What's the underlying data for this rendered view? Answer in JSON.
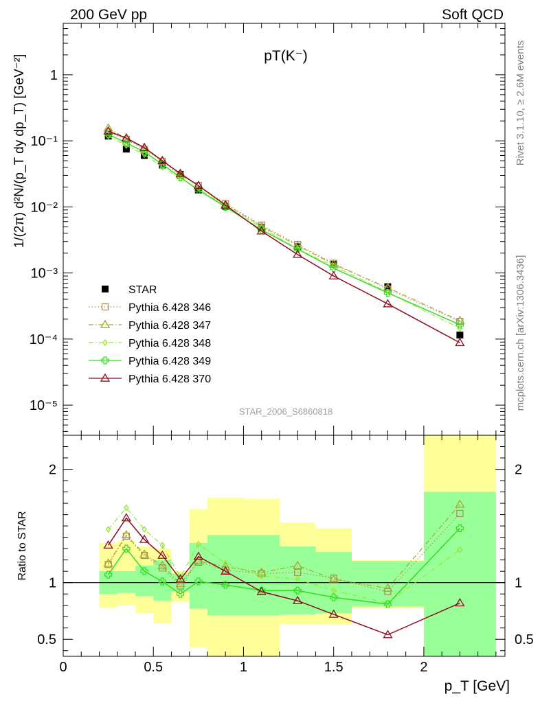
{
  "header": {
    "left": "200 GeV pp",
    "right": "Soft QCD"
  },
  "side_texts": {
    "rivet": "Rivet 3.1.10, ≥ 2.6M events",
    "mcplots": "mcplots.cern.ch [arXiv:1306.3436]"
  },
  "chart_data": [
    {
      "type": "scatter",
      "title": "pT(K⁻)",
      "watermark": "STAR_2006_S6860818",
      "ylabel": "1/(2π) d²N/(p_T dy dp_T) [GeV⁻²]",
      "yscale": "log",
      "xlim": [
        0,
        2.45
      ],
      "ylim": [
        3.5e-06,
        6
      ],
      "y_ticks": [
        {
          "value": 1,
          "label": "1"
        },
        {
          "value": 0.1,
          "label": "10⁻¹"
        },
        {
          "value": 0.01,
          "label": "10⁻²"
        },
        {
          "value": 0.001,
          "label": "10⁻³"
        },
        {
          "value": 0.0001,
          "label": "10⁻⁴"
        },
        {
          "value": 1e-05,
          "label": "10⁻⁵"
        }
      ],
      "legend_position": "lower-left",
      "x": [
        0.25,
        0.35,
        0.45,
        0.55,
        0.65,
        0.75,
        0.9,
        1.1,
        1.3,
        1.5,
        1.8,
        2.2
      ],
      "series": [
        {
          "name": "STAR",
          "color": "#000000",
          "marker": "square-filled",
          "line": "none",
          "values": [
            0.118,
            0.075,
            0.06,
            0.043,
            0.031,
            0.018,
            0.0102,
            0.0049,
            0.0025,
            0.00135,
            0.00062,
            0.000115
          ]
        },
        {
          "name": "Pythia 6.428 346",
          "color": "#b08d57",
          "marker": "square-open",
          "line": "dotted",
          "values": [
            0.135,
            0.105,
            0.074,
            0.049,
            0.03,
            0.021,
            0.0112,
            0.0053,
            0.0027,
            0.0014,
            0.00057,
            0.000185
          ]
        },
        {
          "name": "Pythia 6.428 347",
          "color": "#a6a632",
          "marker": "triangle-open",
          "line": "dashdot",
          "values": [
            0.155,
            0.108,
            0.077,
            0.05,
            0.031,
            0.021,
            0.0109,
            0.0051,
            0.0026,
            0.00135,
            0.0006,
            0.00019
          ]
        },
        {
          "name": "Pythia 6.428 348",
          "color": "#99e632",
          "marker": "diamond-open",
          "line": "dashdot",
          "values": [
            0.118,
            0.085,
            0.062,
            0.04,
            0.027,
            0.019,
            0.0102,
            0.0049,
            0.0023,
            0.00128,
            0.00051,
            0.000145
          ]
        },
        {
          "name": "Pythia 6.428 349",
          "color": "#33dd22",
          "marker": "cross-open",
          "line": "solid",
          "values": [
            0.126,
            0.093,
            0.068,
            0.044,
            0.028,
            0.018,
            0.01,
            0.0045,
            0.0023,
            0.00118,
            0.0005,
            0.000165
          ]
        },
        {
          "name": "Pythia 6.428 370",
          "color": "#8b0d1f",
          "marker": "triangle-open",
          "line": "solid",
          "values": [
            0.14,
            0.11,
            0.079,
            0.05,
            0.032,
            0.021,
            0.0106,
            0.0043,
            0.0019,
            0.0009,
            0.00034,
            8.8e-05
          ]
        }
      ]
    },
    {
      "type": "scatter",
      "ylabel": "Ratio to STAR",
      "xlabel": "p_T [GeV]",
      "xlim": [
        0,
        2.45
      ],
      "ylim": [
        0.35,
        2.3
      ],
      "x_ticks": [
        {
          "value": 0,
          "label": "0"
        },
        {
          "value": 0.5,
          "label": "0.5"
        },
        {
          "value": 1,
          "label": "1"
        },
        {
          "value": 1.5,
          "label": "1.5"
        },
        {
          "value": 2,
          "label": "2"
        }
      ],
      "y_ticks": [
        {
          "value": 0.5,
          "label": "0.5"
        },
        {
          "value": 1,
          "label": "1"
        },
        {
          "value": 2,
          "label": "2"
        }
      ],
      "reference_line": 1,
      "bands": [
        {
          "xlo": 0.2,
          "xhi": 0.3,
          "inner": [
            0.9,
            1.1
          ],
          "outer": [
            0.78,
            1.35
          ]
        },
        {
          "xlo": 0.3,
          "xhi": 0.4,
          "inner": [
            0.91,
            1.1
          ],
          "outer": [
            0.8,
            1.37
          ]
        },
        {
          "xlo": 0.4,
          "xhi": 0.5,
          "inner": [
            0.88,
            1.15
          ],
          "outer": [
            0.73,
            1.32
          ]
        },
        {
          "xlo": 0.5,
          "xhi": 0.6,
          "inner": [
            0.84,
            1.2
          ],
          "outer": [
            0.64,
            1.3
          ]
        },
        {
          "xlo": 0.6,
          "xhi": 0.7,
          "inner": [
            0.92,
            1.08
          ],
          "outer": [
            0.83,
            1.1
          ]
        },
        {
          "xlo": 0.7,
          "xhi": 0.8,
          "inner": [
            0.77,
            1.35
          ],
          "outer": [
            0.43,
            1.65
          ]
        },
        {
          "xlo": 0.8,
          "xhi": 1.0,
          "inner": [
            0.71,
            1.42
          ],
          "outer": [
            0.35,
            1.75
          ]
        },
        {
          "xlo": 1.0,
          "xhi": 1.2,
          "inner": [
            0.71,
            1.42
          ],
          "outer": [
            0.35,
            1.74
          ]
        },
        {
          "xlo": 1.2,
          "xhi": 1.4,
          "inner": [
            0.72,
            1.32
          ],
          "outer": [
            0.63,
            1.53
          ]
        },
        {
          "xlo": 1.4,
          "xhi": 1.6,
          "inner": [
            0.73,
            1.27
          ],
          "outer": [
            0.63,
            1.48
          ]
        },
        {
          "xlo": 1.6,
          "xhi": 2.0,
          "inner": [
            0.79,
            1.19
          ],
          "outer": [
            0.78,
            1.2
          ]
        },
        {
          "xlo": 2.0,
          "xhi": 2.4,
          "inner": [
            0.35,
            1.8
          ],
          "outer": [
            0.35,
            2.3
          ]
        }
      ],
      "series": [
        {
          "name": "Pythia 6.428 346",
          "values": [
            1.16,
            1.41,
            1.24,
            1.13,
            0.97,
            1.18,
            1.11,
            1.08,
            1.09,
            1.04,
            0.92,
            1.61
          ]
        },
        {
          "name": "Pythia 6.428 347",
          "values": [
            1.17,
            1.42,
            1.25,
            1.15,
            0.99,
            1.19,
            1.14,
            1.09,
            1.15,
            1.03,
            0.95,
            1.69
          ]
        },
        {
          "name": "Pythia 6.428 348",
          "values": [
            1.47,
            1.66,
            1.47,
            1.33,
            1.05,
            1.34,
            1.17,
            1.06,
            1.03,
            0.93,
            0.82,
            1.29
          ]
        },
        {
          "name": "Pythia 6.428 349",
          "values": [
            1.07,
            1.3,
            1.1,
            1.01,
            0.9,
            1.01,
            0.98,
            0.93,
            0.93,
            0.87,
            0.81,
            1.48
          ]
        },
        {
          "name": "Pythia 6.428 370",
          "values": [
            1.33,
            1.57,
            1.38,
            1.24,
            1.03,
            1.23,
            1.1,
            0.92,
            0.84,
            0.72,
            0.54,
            0.82
          ]
        }
      ]
    }
  ]
}
